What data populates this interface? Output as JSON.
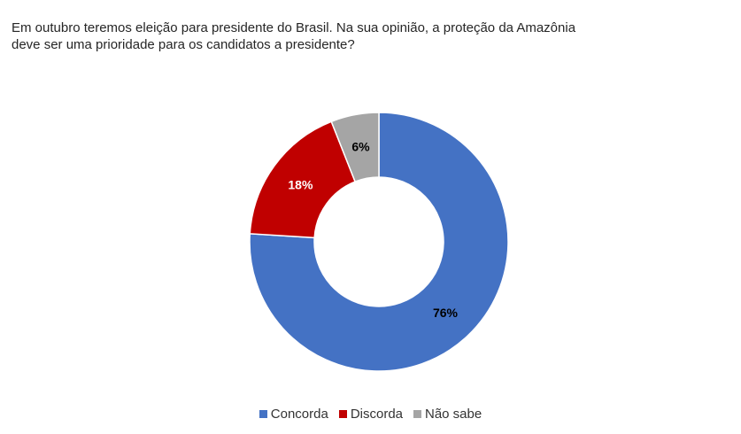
{
  "header": {
    "title_line1": "Em outubro teremos eleição para presidente do Brasil. Na sua opinião, a proteção da Amazônia",
    "title_line2": "deve ser uma prioridade para os candidatos a presidente?"
  },
  "chart_data": {
    "type": "pie",
    "variant": "donut",
    "title": "Em outubro teremos eleição para presidente do Brasil. Na sua opinião, a proteção da Amazônia deve ser uma prioridade para os candidatos a presidente?",
    "categories": [
      "Concorda",
      "Discorda",
      "Não sabe"
    ],
    "values": [
      76,
      18,
      6
    ],
    "labels": [
      "76%",
      "18%",
      "6%"
    ],
    "colors": [
      "#4472c4",
      "#c00000",
      "#a5a5a5"
    ],
    "label_colors": [
      "#000000",
      "#ffffff",
      "#000000"
    ],
    "legend_position": "bottom"
  }
}
